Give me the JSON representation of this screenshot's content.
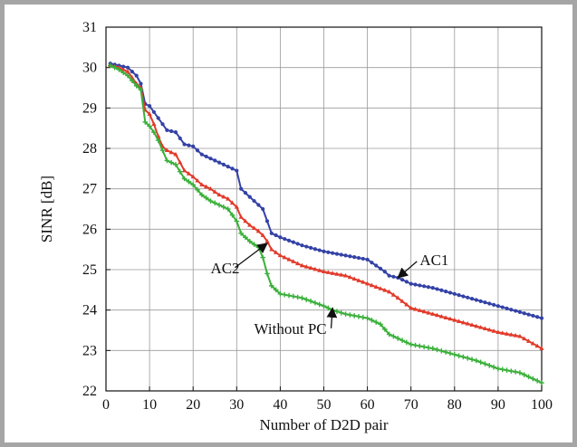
{
  "chart_data": {
    "type": "line",
    "title": "",
    "xlabel": "Number of D2D pair",
    "ylabel": "SINR [dB]",
    "xlim": [
      0,
      100
    ],
    "ylim": [
      22,
      31
    ],
    "xticks": [
      0,
      10,
      20,
      30,
      40,
      50,
      60,
      70,
      80,
      90,
      100
    ],
    "yticks": [
      22,
      23,
      24,
      25,
      26,
      27,
      28,
      29,
      30,
      31
    ],
    "grid": true,
    "legend": "none",
    "series": [
      {
        "name": "AC1",
        "color": "#3442a6",
        "marker": "dot",
        "x": [
          1,
          3,
          5,
          7,
          8,
          9,
          10,
          11,
          12,
          13,
          14,
          16,
          18,
          20,
          22,
          24,
          26,
          28,
          30,
          31,
          33,
          35,
          36,
          38,
          40,
          45,
          50,
          55,
          60,
          62,
          64,
          65,
          67,
          70,
          75,
          80,
          85,
          90,
          95,
          100
        ],
        "y": [
          30.1,
          30.05,
          30.0,
          29.8,
          29.6,
          29.1,
          29.05,
          28.9,
          28.75,
          28.6,
          28.45,
          28.4,
          28.1,
          28.05,
          27.85,
          27.75,
          27.65,
          27.55,
          27.45,
          27.0,
          26.8,
          26.6,
          26.5,
          25.9,
          25.8,
          25.6,
          25.45,
          25.35,
          25.25,
          25.1,
          24.95,
          24.85,
          24.8,
          24.65,
          24.55,
          24.4,
          24.25,
          24.1,
          23.95,
          23.8
        ]
      },
      {
        "name": "AC2",
        "color": "#e13a2a",
        "marker": "triangle",
        "x": [
          1,
          3,
          5,
          7,
          8,
          9,
          10,
          11,
          12,
          13,
          14,
          16,
          18,
          20,
          22,
          24,
          26,
          28,
          30,
          31,
          33,
          35,
          36,
          37,
          38,
          40,
          45,
          50,
          55,
          60,
          65,
          67,
          70,
          75,
          80,
          85,
          90,
          95,
          100
        ],
        "y": [
          30.05,
          30.0,
          29.9,
          29.6,
          29.5,
          28.95,
          28.85,
          28.6,
          28.3,
          28.05,
          27.95,
          27.85,
          27.45,
          27.3,
          27.1,
          27.0,
          26.85,
          26.75,
          26.55,
          26.3,
          26.1,
          25.95,
          25.85,
          25.7,
          25.5,
          25.35,
          25.1,
          24.95,
          24.85,
          24.65,
          24.45,
          24.3,
          24.05,
          23.9,
          23.75,
          23.6,
          23.45,
          23.35,
          23.05
        ]
      },
      {
        "name": "Without PC",
        "color": "#3ab03a",
        "marker": "plus",
        "x": [
          1,
          3,
          5,
          7,
          8,
          9,
          10,
          11,
          12,
          14,
          16,
          18,
          20,
          22,
          24,
          26,
          28,
          30,
          31,
          33,
          35,
          36,
          37,
          38,
          40,
          45,
          50,
          52,
          55,
          60,
          63,
          65,
          70,
          75,
          80,
          85,
          90,
          95,
          100
        ],
        "y": [
          30.05,
          29.95,
          29.8,
          29.55,
          29.45,
          28.65,
          28.55,
          28.4,
          28.2,
          27.7,
          27.6,
          27.25,
          27.1,
          26.85,
          26.7,
          26.6,
          26.5,
          26.2,
          25.9,
          25.7,
          25.55,
          25.3,
          24.9,
          24.6,
          24.4,
          24.3,
          24.1,
          24.0,
          23.9,
          23.8,
          23.65,
          23.4,
          23.15,
          23.05,
          22.9,
          22.75,
          22.55,
          22.45,
          22.2
        ]
      }
    ],
    "annotations": [
      {
        "text": "AC1",
        "series": 0,
        "at_x": 67,
        "at_y": 24.8,
        "label_x": 72,
        "label_y": 25.25
      },
      {
        "text": "AC2",
        "series": 1,
        "at_x": 37,
        "at_y": 25.65,
        "label_x": 24,
        "label_y": 25.05
      },
      {
        "text": "Without PC",
        "series": 2,
        "at_x": 52,
        "at_y": 24.05,
        "label_x": 34,
        "label_y": 23.55
      }
    ]
  }
}
